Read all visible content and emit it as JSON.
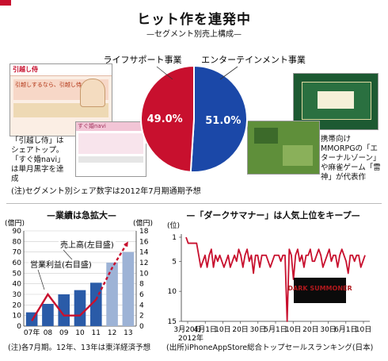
{
  "title": "ヒット作を連発中",
  "pie": {
    "subtitle": "—セグメント別売上構成—",
    "footnote": "(注)セグメント別シェア数字は2012年7月期通期予想",
    "callout_left": "「引越し侍」はシェアトップ。「すぐ婚navi」は単月黒字を達成",
    "callout_right": "携帯向けMMORPGの「エターナルゾーン」や麻雀ゲーム「雷神」が代表作",
    "screenshot_brand": "引越し侍",
    "screenshot_slogan": "引越しするなら、引越し侍",
    "screenshot2_text": "すぐ婚navi"
  },
  "bar_chart_title": "—業績は急拡大—",
  "bar_chart_footnote": "(注)各7月期。12年、13年は東洋経済予想",
  "line_chart_title": "—「ダークサマナー」は人気上位をキープ—",
  "line_chart_footnote": "(出所)iPhoneAppStore総合トップセールスランキング(日本)",
  "line_chart_logo": "DARK SUMMONER",
  "colors": {
    "red": "#c8102e",
    "blue": "#1b48a8",
    "bar": "#2a5ba8",
    "bar_forecast": "#9db3d6",
    "line": "#c8102e"
  },
  "chart_data": [
    {
      "type": "pie",
      "slices": [
        {
          "label": "ライフサポート事業",
          "value": 49.0,
          "display": "49.0%",
          "color": "#c8102e"
        },
        {
          "label": "エンターテインメント事業",
          "value": 51.0,
          "display": "51.0%",
          "color": "#1b48a8"
        }
      ]
    },
    {
      "type": "bar",
      "categories": [
        "07年",
        "08",
        "09",
        "10",
        "11",
        "12",
        "13"
      ],
      "series": [
        {
          "name": "売上高(左目盛)",
          "values": [
            13,
            21,
            30,
            34,
            41,
            60,
            70
          ],
          "forecast_from_index": 5
        },
        {
          "name": "営業利益(右目盛)",
          "values": [
            1,
            6,
            2,
            2,
            5,
            11,
            16
          ],
          "forecast_from_index": 4
        }
      ],
      "y_left": {
        "label": "(億円)",
        "ylim": [
          0,
          90
        ],
        "ticks": [
          0,
          10,
          20,
          30,
          40,
          50,
          60,
          70,
          80,
          90
        ]
      },
      "y_right": {
        "label": "(億円)",
        "ylim": [
          0,
          18
        ],
        "ticks": [
          0,
          2,
          4,
          6,
          8,
          10,
          12,
          14,
          16,
          18
        ]
      },
      "grid": true
    },
    {
      "type": "line",
      "series_values": [
        1,
        2,
        2,
        2,
        2,
        2,
        4,
        6,
        5,
        4,
        6,
        4,
        3,
        6,
        4,
        5,
        4,
        5,
        6,
        5,
        4,
        6,
        5,
        4,
        5,
        3,
        4,
        6,
        4,
        3,
        5,
        4,
        7,
        4,
        4,
        6,
        4,
        4,
        4,
        5,
        6,
        5,
        4,
        4,
        4,
        5,
        4,
        4,
        15,
        3,
        4,
        8,
        4,
        3,
        5,
        4,
        6,
        4,
        4,
        3,
        5,
        5,
        4,
        3,
        4,
        6,
        5,
        4,
        3,
        5,
        4,
        4,
        6,
        4,
        3,
        4,
        5,
        7,
        4,
        4,
        5,
        4,
        4,
        6,
        5,
        4
      ],
      "x_start": "2012-03-20",
      "x_end": "2012-06-13",
      "x_ticks": [
        "3月20日",
        "4月1日",
        "10日",
        "20日",
        "30日",
        "5月1日",
        "10日",
        "20日",
        "30日",
        "6月1日",
        "10日"
      ],
      "x_tick_year": "2012年",
      "y_label": "(位)",
      "y_ticks": [
        1,
        5,
        10,
        15
      ],
      "ylim": [
        15,
        1
      ],
      "y_reversed": true
    }
  ]
}
